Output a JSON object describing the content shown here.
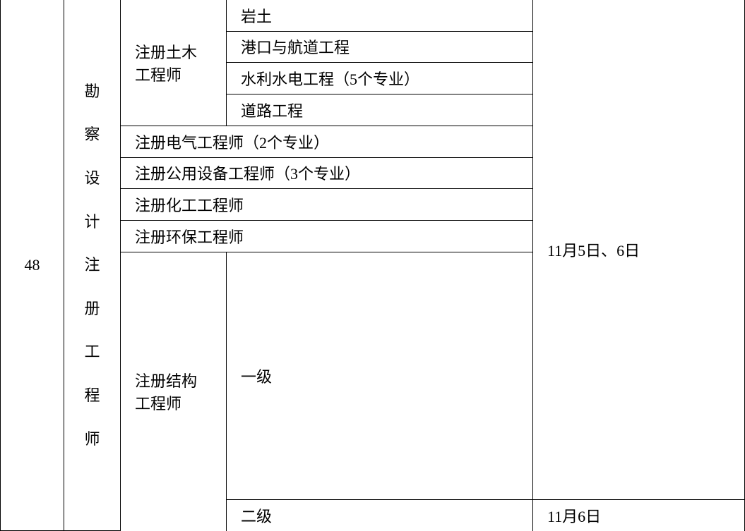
{
  "table": {
    "row_number": "48",
    "category": "勘察设计注册工程师",
    "category_chars": [
      "勘",
      "察",
      "设",
      "计",
      "注",
      "册",
      "工",
      "程",
      "师"
    ],
    "civil_engineer": {
      "label": "注册土木工程师",
      "items": [
        "岩土",
        "港口与航道工程",
        "水利水电工程（5个专业）",
        "道路工程"
      ]
    },
    "electrical": "注册电气工程师（2个专业）",
    "public_equipment": "注册公用设备工程师（3个专业）",
    "chemical": "注册化工工程师",
    "environmental": "注册环保工程师",
    "structural": {
      "label": "注册结构工程师",
      "level1": "一级",
      "level2": "二级"
    },
    "date1": "11月5日、6日",
    "date2": "11月6日"
  },
  "styles": {
    "font_size": 22,
    "border_color": "#000000",
    "background": "#ffffff",
    "text_color": "#000000"
  }
}
